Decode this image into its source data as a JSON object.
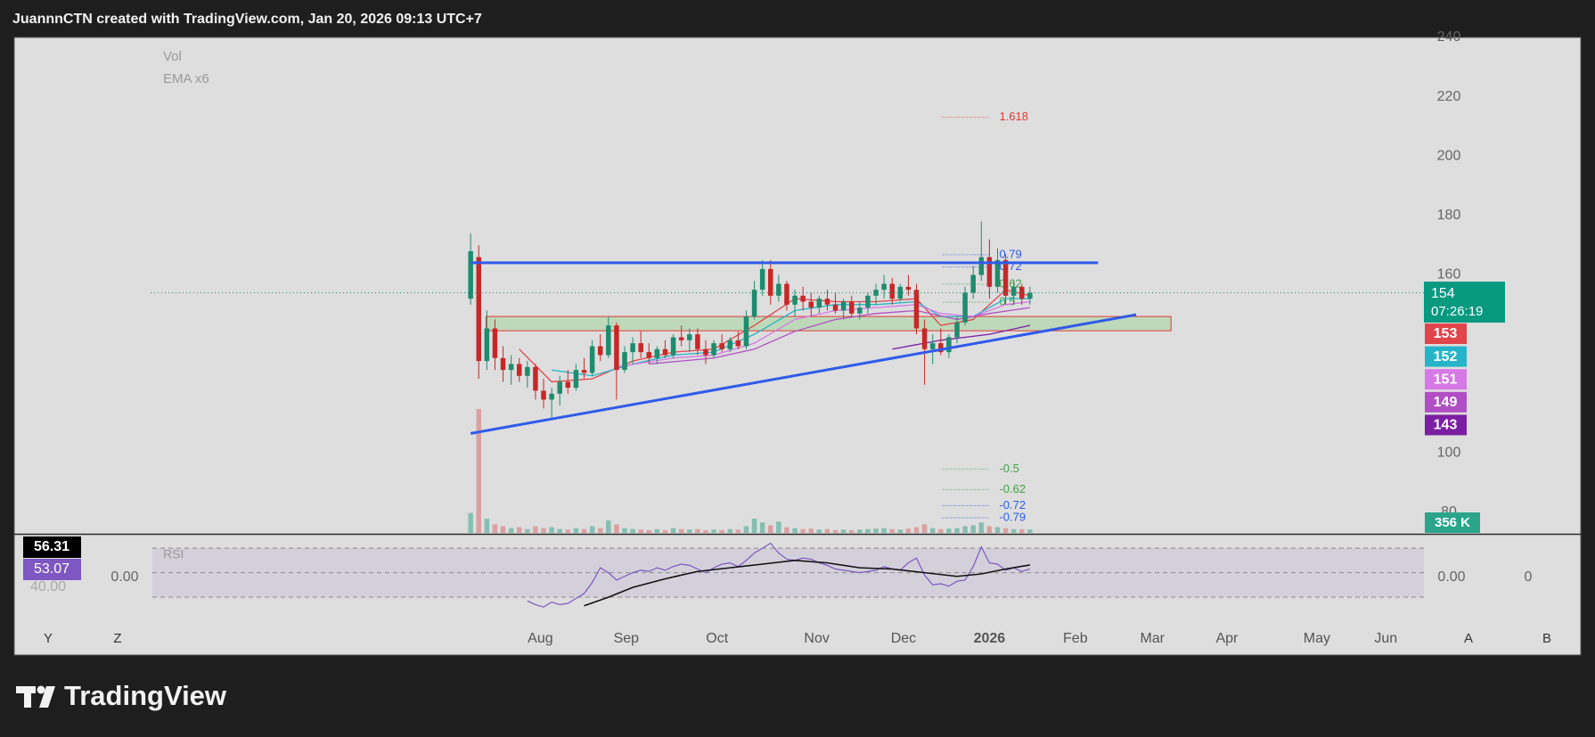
{
  "header": {
    "title": "JuannnCTN created with TradingView.com, Jan 20, 2026 09:13 UTC+7"
  },
  "footer": {
    "brand": "TradingView"
  },
  "chart_data": [
    {
      "type": "candlestick",
      "indicator_labels": [
        "Vol",
        "EMA x6"
      ],
      "xlim": [
        -56.3,
        117.6
      ],
      "xticks": [
        {
          "value": 8.6,
          "label": "Aug"
        },
        {
          "value": 19.2,
          "label": "Sep"
        },
        {
          "value": 30.4,
          "label": "Oct"
        },
        {
          "value": 42.7,
          "label": "Nov"
        },
        {
          "value": 53.4,
          "label": "Dec"
        },
        {
          "value": 64,
          "label": "2026"
        },
        {
          "value": 74.6,
          "label": "Feb"
        },
        {
          "value": 84.1,
          "label": "Mar"
        },
        {
          "value": 93.3,
          "label": "Apr"
        },
        {
          "value": 104.4,
          "label": "May"
        },
        {
          "value": 112.9,
          "label": "Jun"
        }
      ],
      "ylim": [
        72.8,
        240
      ],
      "yticks": [
        80,
        100,
        160,
        180,
        200,
        220,
        240
      ],
      "grid": false,
      "up_color": "#1e8c6e",
      "down_color": "#c62828",
      "volume_colors": {
        "up": "#86bfb2",
        "down": "#dba1a1"
      },
      "open": [
        152,
        166,
        131,
        142,
        132,
        128,
        130,
        126,
        129,
        121,
        118,
        120,
        124,
        122,
        128,
        127,
        136,
        133,
        143,
        128,
        134,
        137,
        134,
        132,
        135,
        133,
        139,
        138,
        140,
        135,
        133,
        137,
        135,
        138,
        136,
        146,
        155,
        162,
        153,
        157,
        150,
        153,
        151,
        149,
        152,
        150,
        148,
        151,
        147,
        149,
        153,
        155,
        157,
        152,
        156,
        155,
        142,
        135,
        137,
        134,
        139,
        144,
        154,
        160,
        166,
        156,
        165,
        153,
        156,
        152
      ],
      "high": [
        174,
        170,
        148,
        145,
        136,
        133,
        132,
        131,
        130,
        125,
        122,
        126,
        128,
        130,
        132,
        138,
        140,
        146,
        144,
        136,
        139,
        141,
        137,
        136,
        138,
        140,
        143,
        142,
        142,
        138,
        138,
        140,
        139,
        141,
        148,
        158,
        165,
        165,
        160,
        158,
        155,
        156,
        154,
        153,
        155,
        154,
        152,
        153,
        151,
        154,
        157,
        160,
        159,
        157,
        160,
        157,
        145,
        140,
        142,
        140,
        146,
        156,
        163,
        178,
        172,
        169,
        167,
        158,
        157,
        156
      ],
      "low": [
        150,
        125,
        128,
        128,
        124,
        123,
        124,
        122,
        118,
        115,
        112,
        116,
        120,
        121,
        125,
        126,
        131,
        132,
        118,
        127,
        130,
        132,
        130,
        130,
        132,
        132,
        136,
        134,
        133,
        130,
        132,
        134,
        134,
        135,
        135,
        145,
        153,
        150,
        151,
        148,
        146,
        148,
        146,
        147,
        148,
        147,
        145,
        146,
        145,
        147,
        150,
        152,
        150,
        151,
        153,
        140,
        123,
        130,
        133,
        132,
        137,
        143,
        152,
        158,
        152,
        154,
        150,
        150,
        150,
        150
      ],
      "close": [
        168,
        131,
        142,
        132,
        128,
        130,
        126,
        129,
        121,
        118,
        120,
        124,
        122,
        128,
        127,
        136,
        133,
        143,
        128,
        134,
        137,
        134,
        132,
        135,
        133,
        139,
        138,
        140,
        135,
        133,
        137,
        135,
        138,
        136,
        146,
        155,
        162,
        153,
        157,
        150,
        153,
        151,
        149,
        152,
        150,
        148,
        151,
        147,
        149,
        153,
        155,
        157,
        152,
        156,
        155,
        142,
        135,
        137,
        134,
        139,
        144,
        154,
        160,
        166,
        156,
        165,
        153,
        156,
        152,
        154
      ],
      "countdown": "07:26:19",
      "volume": [
        2100,
        13000,
        1500,
        900,
        700,
        500,
        600,
        400,
        700,
        500,
        600,
        400,
        350,
        500,
        400,
        700,
        500,
        1300,
        900,
        500,
        400,
        350,
        300,
        400,
        300,
        500,
        400,
        350,
        400,
        300,
        350,
        300,
        400,
        350,
        700,
        1500,
        1100,
        800,
        1200,
        600,
        500,
        400,
        450,
        350,
        400,
        300,
        350,
        300,
        350,
        400,
        450,
        500,
        400,
        350,
        450,
        600,
        900,
        500,
        400,
        450,
        500,
        700,
        800,
        1100,
        700,
        600,
        500,
        400,
        380,
        356
      ],
      "volume_label": "356 K",
      "series": [
        {
          "color": "#e0454b",
          "x": [
            6,
            10,
            15,
            20,
            25,
            30,
            35,
            40,
            45,
            50,
            55,
            58,
            62,
            66,
            69
          ],
          "values": [
            135,
            124,
            125,
            131,
            134,
            135,
            143,
            152,
            151,
            151,
            152,
            143,
            145,
            155,
            153
          ]
        },
        {
          "color": "#26b5c8",
          "x": [
            10,
            15,
            20,
            25,
            30,
            35,
            40,
            45,
            50,
            55,
            58,
            62,
            66,
            69
          ],
          "values": [
            128,
            126,
            130,
            133,
            134,
            140,
            148,
            150,
            150,
            151,
            146,
            146,
            152,
            152
          ]
        },
        {
          "color": "#d678e6",
          "x": [
            18,
            25,
            30,
            35,
            40,
            45,
            50,
            55,
            58,
            62,
            66,
            69
          ],
          "values": [
            129,
            132,
            133,
            137,
            145,
            148,
            149,
            150,
            147,
            146,
            150,
            151
          ]
        },
        {
          "color": "#b04fc4",
          "x": [
            22,
            30,
            35,
            40,
            45,
            50,
            55,
            60,
            64,
            69
          ],
          "values": [
            130,
            132,
            135,
            141,
            145,
            147,
            148,
            145,
            147,
            149
          ]
        },
        {
          "color": "#7b1fa2",
          "x": [
            52,
            58,
            64,
            69
          ],
          "values": [
            135,
            138,
            140,
            143
          ]
        }
      ],
      "zone": {
        "x": [
          1.9,
          86.4
        ],
        "y": [
          141.2,
          146
        ],
        "fill": "#b7d8b4",
        "stroke": "#e53935"
      },
      "lines": [
        {
          "color": "#2f5bea",
          "x": [
            0,
            77.4
          ],
          "y": [
            164.1,
            164.1
          ]
        },
        {
          "color": "#2f5bea",
          "x": [
            0,
            82.1
          ],
          "y": [
            106.6,
            146.6
          ]
        }
      ],
      "fib_x": [
        58.2,
        63.9
      ],
      "fib": [
        {
          "label": "1.618",
          "value": 213.1,
          "color": "#e53935"
        },
        {
          "label": "0.79",
          "value": 166.8,
          "color": "#2f5bea"
        },
        {
          "label": "0.72",
          "value": 162.7,
          "color": "#2f5bea"
        },
        {
          "label": "0.62",
          "value": 156.9,
          "color": "#43a047"
        },
        {
          "label": "0.5",
          "value": 150.8,
          "color": "#43a047"
        },
        {
          "label": "-0.5",
          "value": 94.6,
          "color": "#43a047"
        },
        {
          "label": "-0.62",
          "value": 87.7,
          "color": "#43a047"
        },
        {
          "label": "-0.72",
          "value": 82.3,
          "color": "#2f5bea"
        },
        {
          "label": "-0.79",
          "value": 78.2,
          "color": "#2f5bea"
        }
      ]
    },
    {
      "type": "line",
      "title": "RSI",
      "xlim": [
        -56.3,
        117.6
      ],
      "ylim": [
        8.3,
        81.7
      ],
      "band": [
        30,
        70
      ],
      "midline": 50,
      "texts": {
        "faded": "40.00",
        "left_value": "0.00",
        "right_value": "0.00",
        "right_extra": "0"
      },
      "series": [
        {
          "color": "#7e57c2",
          "values": [
            null,
            null,
            null,
            null,
            null,
            null,
            null,
            27,
            24,
            22,
            26,
            24,
            25,
            29,
            33,
            42,
            54,
            50,
            44,
            47,
            50,
            52,
            51,
            54,
            52,
            55,
            57,
            56,
            53,
            50,
            54,
            57,
            58,
            55,
            60,
            66,
            70,
            74,
            66,
            61,
            60,
            62,
            61,
            58,
            56,
            53,
            52,
            51,
            50,
            51,
            52,
            55,
            53,
            52,
            58,
            62,
            48,
            40,
            41,
            39,
            43,
            44,
            55,
            71,
            58,
            57,
            52,
            54,
            51,
            53.07
          ]
        },
        {
          "color": "#111111",
          "x": [
            14,
            17,
            20,
            24,
            28,
            32,
            36,
            40,
            44,
            48,
            52,
            56,
            60,
            63,
            66,
            69
          ],
          "values": [
            23,
            30,
            38,
            45,
            51,
            54,
            57,
            60,
            58,
            54,
            53,
            50,
            47,
            49,
            53,
            56.31
          ]
        }
      ]
    },
    {
      "type": "buttons",
      "labels": [
        "Y",
        "Z",
        "A",
        "B"
      ]
    }
  ]
}
